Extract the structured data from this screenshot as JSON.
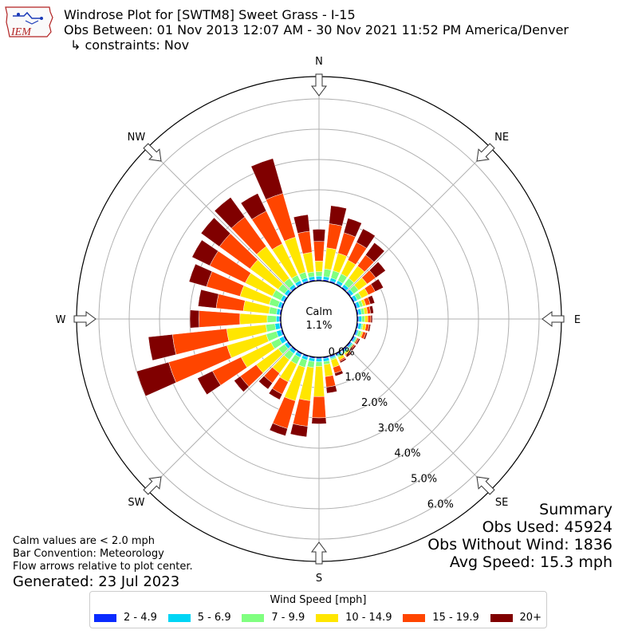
{
  "logo": {
    "text": "IEM"
  },
  "title": {
    "line1": "Windrose Plot for [SWTM8] Sweet Grass - I-15",
    "line2": "Obs Between: 01 Nov 2013 12:07 AM - 30 Nov 2021 11:52 PM America/Denver",
    "line3": "↳ constraints: Nov"
  },
  "summary": {
    "heading": "Summary",
    "obs_used": "Obs Used: 45924",
    "obs_without_wind": "Obs Without Wind: 1836",
    "avg_speed": "Avg Speed: 15.3 mph"
  },
  "notes": {
    "calm": "Calm values are < 2.0 mph",
    "convention": "Bar Convention: Meteorology",
    "arrows": "Flow arrows relative to plot center."
  },
  "generated": "Generated: 23 Jul 2023",
  "calm_label": "Calm",
  "calm_value": "1.1%",
  "legend": {
    "title": "Wind Speed [mph]",
    "items": [
      {
        "label": "2 - 4.9",
        "color": "#0a2bff"
      },
      {
        "label": "5 - 6.9",
        "color": "#00d5f5"
      },
      {
        "label": "7 - 9.9",
        "color": "#80ff80"
      },
      {
        "label": "10 - 14.9",
        "color": "#ffe600"
      },
      {
        "label": "15 - 19.9",
        "color": "#ff4500"
      },
      {
        "label": "20+",
        "color": "#800000"
      }
    ]
  },
  "chart_data": {
    "type": "windrose",
    "directions_deg": [
      0,
      10,
      20,
      30,
      40,
      50,
      60,
      70,
      80,
      90,
      100,
      110,
      120,
      130,
      140,
      150,
      160,
      170,
      180,
      190,
      200,
      210,
      220,
      230,
      240,
      250,
      260,
      270,
      280,
      290,
      300,
      310,
      320,
      330,
      340,
      350
    ],
    "compass_labels": [
      {
        "label": "N",
        "deg": 0
      },
      {
        "label": "NE",
        "deg": 45
      },
      {
        "label": "E",
        "deg": 90
      },
      {
        "label": "SE",
        "deg": 135
      },
      {
        "label": "S",
        "deg": 180
      },
      {
        "label": "SW",
        "deg": 225
      },
      {
        "label": "W",
        "deg": 270
      },
      {
        "label": "NW",
        "deg": 315
      }
    ],
    "radial_ticks": [
      "0.0%",
      "1.0%",
      "2.0%",
      "3.0%",
      "4.0%",
      "5.0%",
      "6.0%"
    ],
    "rmax_percent": 6.5,
    "calm_percent": 1.1,
    "cumulative_percent": [
      [
        0.05,
        0.15,
        0.3,
        0.65,
        1.3,
        1.7
      ],
      [
        0.05,
        0.15,
        0.4,
        1.1,
        1.9,
        2.5
      ],
      [
        0.05,
        0.15,
        0.4,
        1.0,
        1.7,
        2.2
      ],
      [
        0.05,
        0.15,
        0.4,
        0.9,
        1.55,
        2.05
      ],
      [
        0.05,
        0.15,
        0.4,
        0.9,
        1.35,
        1.85
      ],
      [
        0.05,
        0.15,
        0.35,
        0.7,
        1.05,
        1.45
      ],
      [
        0.05,
        0.15,
        0.3,
        0.55,
        0.8,
        1.1
      ],
      [
        0.05,
        0.15,
        0.25,
        0.35,
        0.5,
        0.65
      ],
      [
        0.05,
        0.15,
        0.25,
        0.35,
        0.45,
        0.55
      ],
      [
        0.05,
        0.15,
        0.25,
        0.35,
        0.45,
        0.5
      ],
      [
        0.05,
        0.15,
        0.2,
        0.3,
        0.4,
        0.45
      ],
      [
        0.05,
        0.1,
        0.2,
        0.25,
        0.35,
        0.4
      ],
      [
        0.05,
        0.1,
        0.15,
        0.15,
        0.2,
        0.25
      ],
      [
        0.05,
        0.1,
        0.15,
        0.15,
        0.2,
        0.25
      ],
      [
        0.05,
        0.1,
        0.15,
        0.2,
        0.25,
        0.3
      ],
      [
        0.05,
        0.1,
        0.15,
        0.25,
        0.3,
        0.35
      ],
      [
        0.05,
        0.1,
        0.15,
        0.4,
        0.6,
        0.7
      ],
      [
        0.05,
        0.15,
        0.25,
        0.65,
        1.0,
        1.2
      ],
      [
        0.05,
        0.15,
        0.3,
        1.3,
        2.0,
        2.2
      ],
      [
        0.05,
        0.15,
        0.35,
        1.45,
        2.3,
        2.65
      ],
      [
        0.05,
        0.15,
        0.4,
        1.55,
        2.5,
        2.75
      ],
      [
        0.05,
        0.15,
        0.4,
        1.05,
        1.5,
        1.7
      ],
      [
        0.05,
        0.15,
        0.4,
        0.95,
        1.35,
        1.6
      ],
      [
        0.05,
        0.15,
        0.4,
        1.3,
        1.95,
        2.2
      ],
      [
        0.05,
        0.2,
        0.5,
        1.6,
        2.65,
        3.2
      ],
      [
        0.05,
        0.2,
        0.55,
        1.9,
        3.9,
        5.0
      ],
      [
        0.05,
        0.2,
        0.5,
        1.8,
        3.6,
        4.4
      ],
      [
        0.05,
        0.15,
        0.45,
        1.35,
        2.7,
        3.0
      ],
      [
        0.05,
        0.15,
        0.4,
        1.25,
        2.15,
        2.75
      ],
      [
        0.05,
        0.15,
        0.45,
        1.45,
        2.6,
        3.2
      ],
      [
        0.05,
        0.15,
        0.45,
        1.45,
        2.75,
        3.4
      ],
      [
        0.05,
        0.15,
        0.4,
        1.55,
        2.8,
        3.55
      ],
      [
        0.05,
        0.15,
        0.4,
        1.7,
        2.9,
        3.7
      ],
      [
        0.05,
        0.15,
        0.35,
        1.5,
        2.7,
        3.35
      ],
      [
        0.05,
        0.15,
        0.35,
        1.55,
        3.05,
        4.25
      ],
      [
        0.05,
        0.15,
        0.3,
        0.95,
        1.65,
        2.2
      ]
    ],
    "series": [
      {
        "name": "2 - 4.9"
      },
      {
        "name": "5 - 6.9"
      },
      {
        "name": "7 - 9.9"
      },
      {
        "name": "10 - 14.9"
      },
      {
        "name": "15 - 19.9"
      },
      {
        "name": "20+"
      }
    ],
    "grid": true
  }
}
